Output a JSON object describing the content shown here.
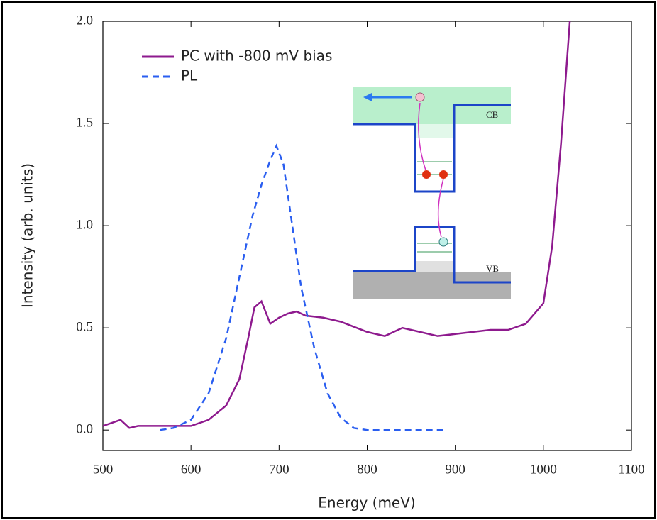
{
  "chart_data": {
    "type": "line",
    "xlabel": "Energy (meV)",
    "ylabel": "Intensity (arb. units)",
    "annotations": [
      "CB",
      "VB"
    ],
    "xlim": [
      500,
      1100
    ],
    "xticks": [
      500,
      600,
      700,
      800,
      900,
      1000,
      1100
    ],
    "ylim": [
      -0.1,
      2.0
    ],
    "yticks": [
      {
        "value": 0,
        "label": "0.0"
      },
      {
        "value": 0.5,
        "label": "0.5"
      },
      {
        "value": 1,
        "label": "1.0"
      },
      {
        "value": 1.5,
        "label": "1.5"
      },
      {
        "value": 2,
        "label": "2.0"
      }
    ],
    "legend": "upper left",
    "series": [
      {
        "name": "PC with -800 mV bias",
        "color": "#8e1a8e",
        "dashed": false,
        "x": [
          500,
          520,
          530,
          540,
          560,
          580,
          600,
          620,
          640,
          655,
          665,
          672,
          680,
          690,
          700,
          710,
          720,
          730,
          750,
          770,
          800,
          820,
          840,
          860,
          880,
          900,
          920,
          940,
          960,
          980,
          1000,
          1010,
          1020,
          1030
        ],
        "values": [
          0.02,
          0.05,
          0.01,
          0.02,
          0.02,
          0.02,
          0.02,
          0.05,
          0.12,
          0.25,
          0.45,
          0.6,
          0.63,
          0.52,
          0.55,
          0.57,
          0.58,
          0.56,
          0.55,
          0.53,
          0.48,
          0.46,
          0.5,
          0.48,
          0.46,
          0.47,
          0.48,
          0.49,
          0.49,
          0.52,
          0.62,
          0.9,
          1.4,
          2.0
        ]
      },
      {
        "name": "PL",
        "color": "#2a5ef0",
        "dashed": true,
        "x": [
          565,
          580,
          600,
          620,
          640,
          660,
          670,
          680,
          690,
          697,
          705,
          715,
          725,
          740,
          755,
          770,
          785,
          800,
          890
        ],
        "values": [
          0.0,
          0.01,
          0.05,
          0.18,
          0.45,
          0.85,
          1.05,
          1.2,
          1.32,
          1.39,
          1.3,
          1.0,
          0.7,
          0.4,
          0.18,
          0.06,
          0.01,
          0.0,
          0.0
        ]
      }
    ]
  }
}
